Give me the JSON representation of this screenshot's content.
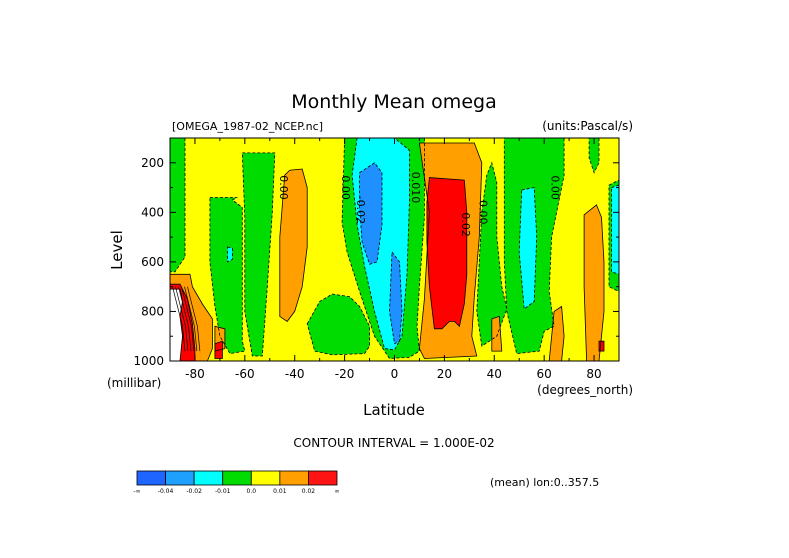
{
  "chart_data": {
    "type": "heatmap",
    "title": "Monthly Mean omega",
    "file_label": "[OMEGA_1987-02_NCEP.nc]",
    "units_label": "(units:Pascal/s)",
    "xlabel": "Latitude",
    "xunits": "(degrees_north)",
    "ylabel": "Level",
    "yunits": "(millibar)",
    "xlim": [
      -90,
      90
    ],
    "ylim": [
      1000,
      100
    ],
    "x_ticks": [
      "-80",
      "-60",
      "-40",
      "-20",
      "0",
      "20",
      "40",
      "60",
      "80"
    ],
    "x_tick_values": [
      -80,
      -60,
      -40,
      -20,
      0,
      20,
      40,
      60,
      80
    ],
    "y_ticks": [
      "200",
      "400",
      "600",
      "800",
      "1000"
    ],
    "y_tick_values": [
      200,
      400,
      600,
      800,
      1000
    ],
    "contour_interval_text": "CONTOUR INTERVAL = 1.000E-02",
    "mean_text": "(mean) lon:0..357.5",
    "contour_labels": [
      {
        "text": "0.00",
        "lat": -46,
        "lev": 300
      },
      {
        "text": "0.00",
        "lat": -21,
        "lev": 300
      },
      {
        "text": "-0.02",
        "lat": -15,
        "lev": 390
      },
      {
        "text": "0.010",
        "lat": 7,
        "lev": 300
      },
      {
        "text": "0.02",
        "lat": 27,
        "lev": 450
      },
      {
        "text": "0.00",
        "lat": 34,
        "lev": 400
      },
      {
        "text": "0.00",
        "lat": 63,
        "lev": 300
      }
    ],
    "regions": [
      {
        "level": "0.0",
        "poly": [
          [
            -90,
            100
          ],
          [
            90,
            100
          ],
          [
            90,
            1000
          ],
          [
            -90,
            1000
          ]
        ]
      },
      {
        "level": "-0.01",
        "poly": [
          [
            -90,
            100
          ],
          [
            -84,
            100
          ],
          [
            -84,
            580
          ],
          [
            -88,
            640
          ],
          [
            -90,
            640
          ]
        ]
      },
      {
        "level": "-0.01",
        "poly": [
          [
            -74,
            340
          ],
          [
            -63,
            340
          ],
          [
            -65,
            350
          ],
          [
            -61,
            380
          ],
          [
            -61,
            650
          ],
          [
            -61,
            920
          ],
          [
            -60,
            960
          ],
          [
            -66,
            970
          ],
          [
            -70,
            900
          ],
          [
            -72,
            780
          ],
          [
            -74,
            600
          ]
        ]
      },
      {
        "level": "-0.01",
        "poly": [
          [
            -61,
            160
          ],
          [
            -48,
            160
          ],
          [
            -49,
            400
          ],
          [
            -51,
            700
          ],
          [
            -53,
            980
          ],
          [
            -57,
            980
          ],
          [
            -60,
            800
          ],
          [
            -60,
            420
          ]
        ]
      },
      {
        "level": "-0.01",
        "poly": [
          [
            -35,
            850
          ],
          [
            -30,
            760
          ],
          [
            -25,
            730
          ],
          [
            -18,
            740
          ],
          [
            -14,
            780
          ],
          [
            -10,
            860
          ],
          [
            -10,
            940
          ],
          [
            -12,
            970
          ],
          [
            -25,
            975
          ],
          [
            -32,
            960
          ]
        ]
      },
      {
        "level": "-0.01",
        "poly": [
          [
            -20,
            100
          ],
          [
            12,
            100
          ],
          [
            12,
            420
          ],
          [
            10,
            700
          ],
          [
            9,
            860
          ],
          [
            10,
            960
          ],
          [
            6,
            985
          ],
          [
            -2,
            990
          ],
          [
            -8,
            900
          ],
          [
            -14,
            720
          ],
          [
            -19,
            560
          ],
          [
            -21,
            440
          ]
        ]
      },
      {
        "level": "-0.01",
        "poly": [
          [
            35,
            400
          ],
          [
            37,
            250
          ],
          [
            39,
            200
          ],
          [
            41,
            280
          ],
          [
            41,
            500
          ],
          [
            43,
            700
          ],
          [
            45,
            790
          ],
          [
            41,
            900
          ],
          [
            35,
            940
          ],
          [
            33,
            800
          ]
        ]
      },
      {
        "level": "-0.01",
        "poly": [
          [
            44,
            100
          ],
          [
            68,
            100
          ],
          [
            68,
            250
          ],
          [
            63,
            500
          ],
          [
            62,
            720
          ],
          [
            64,
            860
          ],
          [
            60,
            880
          ],
          [
            58,
            960
          ],
          [
            49,
            970
          ],
          [
            45,
            800
          ],
          [
            44,
            600
          ]
        ]
      },
      {
        "level": "-0.01",
        "poly": [
          [
            78,
            100
          ],
          [
            82,
            100
          ],
          [
            82,
            200
          ],
          [
            80,
            240
          ],
          [
            78,
            180
          ]
        ]
      },
      {
        "level": "-0.01",
        "poly": [
          [
            86,
            290
          ],
          [
            90,
            270
          ],
          [
            90,
            720
          ],
          [
            86,
            700
          ]
        ]
      },
      {
        "level": "-0.02",
        "poly": [
          [
            -15,
            100
          ],
          [
            0,
            100
          ],
          [
            6,
            150
          ],
          [
            6,
            350
          ],
          [
            5,
            650
          ],
          [
            3,
            900
          ],
          [
            0,
            955
          ],
          [
            -4,
            950
          ],
          [
            -8,
            800
          ],
          [
            -12,
            620
          ],
          [
            -15,
            450
          ],
          [
            -17,
            250
          ]
        ]
      },
      {
        "level": "-0.02",
        "poly": [
          [
            51,
            310
          ],
          [
            56,
            300
          ],
          [
            57,
            500
          ],
          [
            56,
            760
          ],
          [
            52,
            790
          ],
          [
            50,
            560
          ]
        ]
      },
      {
        "level": "-0.02",
        "poly": [
          [
            -67,
            540
          ],
          [
            -65,
            545
          ],
          [
            -65,
            590
          ],
          [
            -67,
            600
          ]
        ]
      },
      {
        "level": "-0.02",
        "poly": [
          [
            87,
            300
          ],
          [
            90,
            290
          ],
          [
            90,
            650
          ],
          [
            87,
            640
          ]
        ]
      },
      {
        "level": "-0.04",
        "poly": [
          [
            -14,
            240
          ],
          [
            -8,
            200
          ],
          [
            -5,
            240
          ],
          [
            -5,
            450
          ],
          [
            -7,
            600
          ],
          [
            -10,
            610
          ],
          [
            -13,
            520
          ],
          [
            -14,
            380
          ]
        ]
      },
      {
        "level": "-0.04",
        "poly": [
          [
            -1,
            560
          ],
          [
            2,
            600
          ],
          [
            3,
            800
          ],
          [
            2,
            920
          ],
          [
            0,
            930
          ],
          [
            -2,
            800
          ]
        ]
      },
      {
        "level": "0.01",
        "poly": [
          [
            -90,
            650
          ],
          [
            -82,
            650
          ],
          [
            -81,
            700
          ],
          [
            -77,
            770
          ],
          [
            -73,
            830
          ],
          [
            -73,
            950
          ],
          [
            -75,
            1000
          ],
          [
            -90,
            1000
          ]
        ]
      },
      {
        "level": "0.01",
        "poly": [
          [
            -72,
            860
          ],
          [
            -68,
            870
          ],
          [
            -68,
            950
          ],
          [
            -72,
            960
          ]
        ]
      },
      {
        "level": "0.01",
        "poly": [
          [
            -44,
            250
          ],
          [
            -42,
            230
          ],
          [
            -37,
            225
          ],
          [
            -35,
            300
          ],
          [
            -35,
            540
          ],
          [
            -37,
            700
          ],
          [
            -40,
            800
          ],
          [
            -43,
            840
          ],
          [
            -46,
            820
          ],
          [
            -46,
            500
          ]
        ]
      },
      {
        "level": "0.01",
        "poly": [
          [
            10,
            120
          ],
          [
            32,
            120
          ],
          [
            35,
            200
          ],
          [
            34,
            500
          ],
          [
            32,
            740
          ],
          [
            31,
            900
          ],
          [
            33,
            980
          ],
          [
            12,
            990
          ],
          [
            10,
            950
          ],
          [
            12,
            750
          ],
          [
            14,
            400
          ]
        ]
      },
      {
        "level": "0.01",
        "poly": [
          [
            39,
            830
          ],
          [
            42,
            820
          ],
          [
            43,
            960
          ],
          [
            39,
            960
          ]
        ]
      },
      {
        "level": "0.01",
        "poly": [
          [
            64,
            800
          ],
          [
            67,
            780
          ],
          [
            68,
            900
          ],
          [
            67,
            1000
          ],
          [
            62,
            1000
          ]
        ]
      },
      {
        "level": "0.01",
        "poly": [
          [
            76,
            410
          ],
          [
            81,
            370
          ],
          [
            83,
            420
          ],
          [
            84,
            600
          ],
          [
            84,
            800
          ],
          [
            82,
            1000
          ],
          [
            77,
            1000
          ],
          [
            76,
            700
          ]
        ]
      },
      {
        "level": "0.02",
        "poly": [
          [
            -90,
            690
          ],
          [
            -86,
            690
          ],
          [
            -83,
            750
          ],
          [
            -81,
            850
          ],
          [
            -80,
            950
          ],
          [
            -80,
            1000
          ],
          [
            -90,
            1000
          ]
        ]
      },
      {
        "level": "0.02",
        "poly": [
          [
            -72,
            930
          ],
          [
            -69,
            920
          ],
          [
            -69,
            990
          ],
          [
            -72,
            990
          ]
        ]
      },
      {
        "level": "0.02",
        "poly": [
          [
            13,
            360
          ],
          [
            14,
            260
          ],
          [
            28,
            270
          ],
          [
            29,
            400
          ],
          [
            29,
            650
          ],
          [
            28,
            770
          ],
          [
            26,
            860
          ],
          [
            24,
            840
          ],
          [
            22,
            840
          ],
          [
            19,
            870
          ],
          [
            16,
            870
          ],
          [
            14,
            700
          ],
          [
            13,
            520
          ]
        ]
      },
      {
        "level": "0.02",
        "poly": [
          [
            82,
            920
          ],
          [
            84,
            920
          ],
          [
            84,
            960
          ],
          [
            82,
            960
          ]
        ]
      },
      {
        "level": "blank",
        "poly": [
          [
            -90,
            710
          ],
          [
            -86,
            710
          ],
          [
            -85,
            760
          ],
          [
            -86,
            820
          ],
          [
            -85,
            900
          ],
          [
            -86,
            1000
          ],
          [
            -90,
            1000
          ]
        ]
      }
    ],
    "colorbar": {
      "colors": [
        "#1e64ff",
        "#1ea0ff",
        "#00ffff",
        "#00dc00",
        "#ffff00",
        "#ffa000",
        "#ff1414"
      ],
      "labels": [
        "-∞",
        "-0.04",
        "-0.02",
        "-0.01",
        "0.0",
        "0.01",
        "0.02",
        "∞"
      ]
    },
    "level_colors": {
      "-0.04": "#1e90ff",
      "-0.02": "#00ffff",
      "-0.01": "#00dc00",
      "0.0": "#ffff00",
      "0.01": "#ffa000",
      "0.02": "#ff0000",
      "blank": "#ffffff"
    }
  }
}
